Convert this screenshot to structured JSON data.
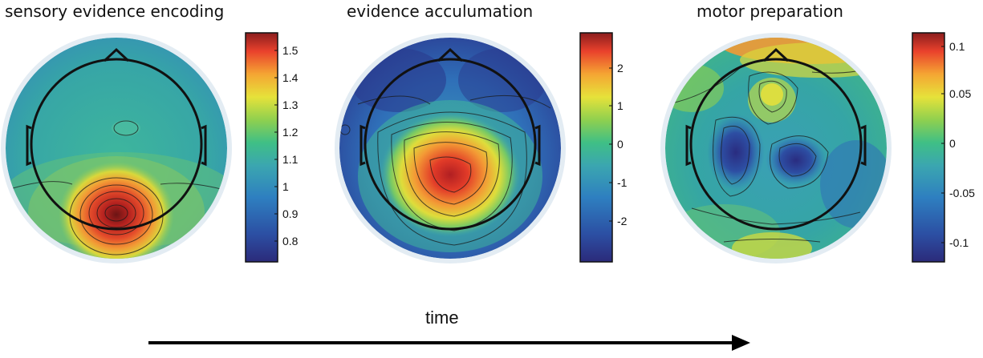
{
  "colors": {
    "background": "#ffffff",
    "outline": "#111111",
    "map_rim": "#dfe9f1",
    "scale": [
      "#2b2a7a",
      "#2c4fa3",
      "#2e7fc0",
      "#3ba6b0",
      "#3fbf86",
      "#8fd04f",
      "#e6e23a",
      "#f5a533",
      "#e9412c",
      "#8b1d1d"
    ]
  },
  "panels": [
    {
      "title": "sensory evidence encoding",
      "colorbar": {
        "ticks": [
          "1.5",
          "1.4",
          "1.3",
          "1.2",
          "1.1",
          "1",
          "0.9",
          "0.8"
        ]
      }
    },
    {
      "title": "evidence acculumation",
      "colorbar": {
        "ticks": [
          "2",
          "1",
          "0",
          "-1",
          "-2"
        ]
      }
    },
    {
      "title": "motor preparation",
      "colorbar": {
        "ticks": [
          "0.1",
          "0.05",
          "0",
          "-0.05",
          "-0.1"
        ]
      }
    }
  ],
  "time_axis": {
    "label": "time"
  }
}
